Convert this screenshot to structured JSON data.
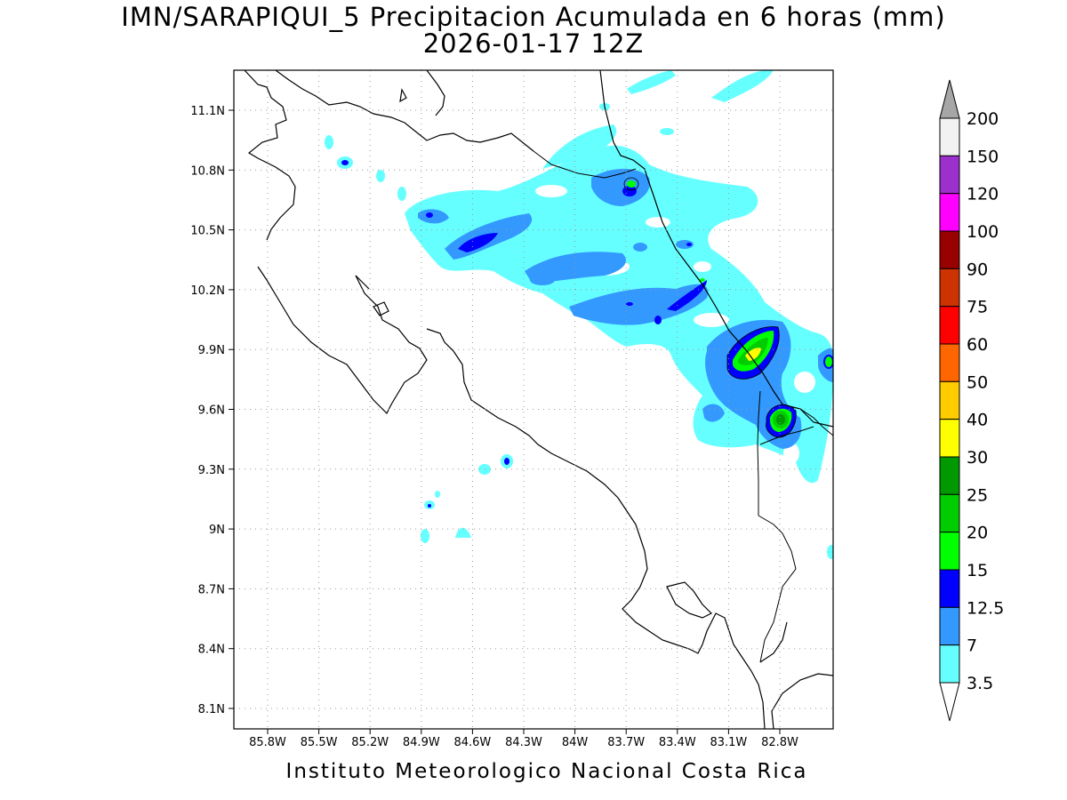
{
  "title_line1": "IMN/SARAPIQUI_5 Precipitacion Acumulada en 6 horas (mm)",
  "title_line2": "2026-01-17 12Z",
  "footer": "Instituto Meteorologico Nacional Costa Rica",
  "map": {
    "lon_range": [
      -86.0,
      -83.0
    ],
    "lat_range": [
      8.0,
      11.3
    ],
    "x_ticks": [
      "85.8W",
      "85.5W",
      "85.2W",
      "84.9W",
      "84.6W",
      "84.3W",
      "84W",
      "83.7W",
      "83.4W",
      "83.1W",
      "82.8W"
    ],
    "y_ticks": [
      "11.1N",
      "10.8N",
      "10.5N",
      "10.2N",
      "9.9N",
      "9.6N",
      "9.3N",
      "9N",
      "8.7N",
      "8.4N",
      "8.1N"
    ]
  },
  "colorbar": {
    "labels": [
      "200",
      "150",
      "120",
      "100",
      "90",
      "75",
      "60",
      "50",
      "40",
      "30",
      "25",
      "20",
      "15",
      "12.5",
      "7",
      "3.5"
    ],
    "colors": [
      "#f2f2f2",
      "#9b30cc",
      "#ff00ff",
      "#990000",
      "#cc3300",
      "#ff0000",
      "#ff6600",
      "#ffcc00",
      "#ffff00",
      "#009900",
      "#00cc00",
      "#00ff00",
      "#0000ff",
      "#3399ff",
      "#66ffff"
    ],
    "over_color": "#a6a6a6",
    "under_color": "#ffffff"
  },
  "precip_colors": {
    "c3_5": "#66ffff",
    "c7": "#3399ff",
    "c12_5": "#0000ff",
    "c15": "#00ff00",
    "c20": "#00cc00",
    "c25": "#009900",
    "c30": "#ffff00"
  }
}
